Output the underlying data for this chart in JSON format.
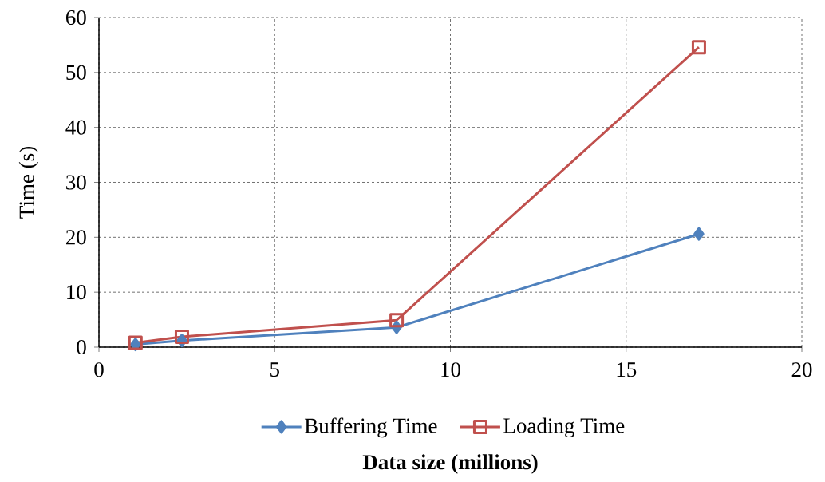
{
  "chart_data": {
    "type": "line",
    "xlabel": "Data size (millions)",
    "ylabel": "Time (s)",
    "series": [
      {
        "name": "Buffering Time",
        "color": "#4f81bd",
        "marker": "diamond",
        "x": [
          1.04,
          2.36,
          8.47,
          17.07
        ],
        "values": [
          0.5,
          1.2,
          3.6,
          20.6
        ]
      },
      {
        "name": "Loading Time",
        "color": "#c0504d",
        "marker": "square",
        "x": [
          1.04,
          2.36,
          8.47,
          17.07
        ],
        "values": [
          0.8,
          1.9,
          4.9,
          54.6
        ]
      }
    ],
    "xlim": [
      0,
      20
    ],
    "ylim": [
      0,
      60
    ],
    "xticks": [
      0,
      5,
      10,
      15,
      20
    ],
    "yticks": [
      0,
      10,
      20,
      30,
      40,
      50,
      60
    ],
    "grid": true,
    "legend": "bottom",
    "line_style": "solid"
  }
}
